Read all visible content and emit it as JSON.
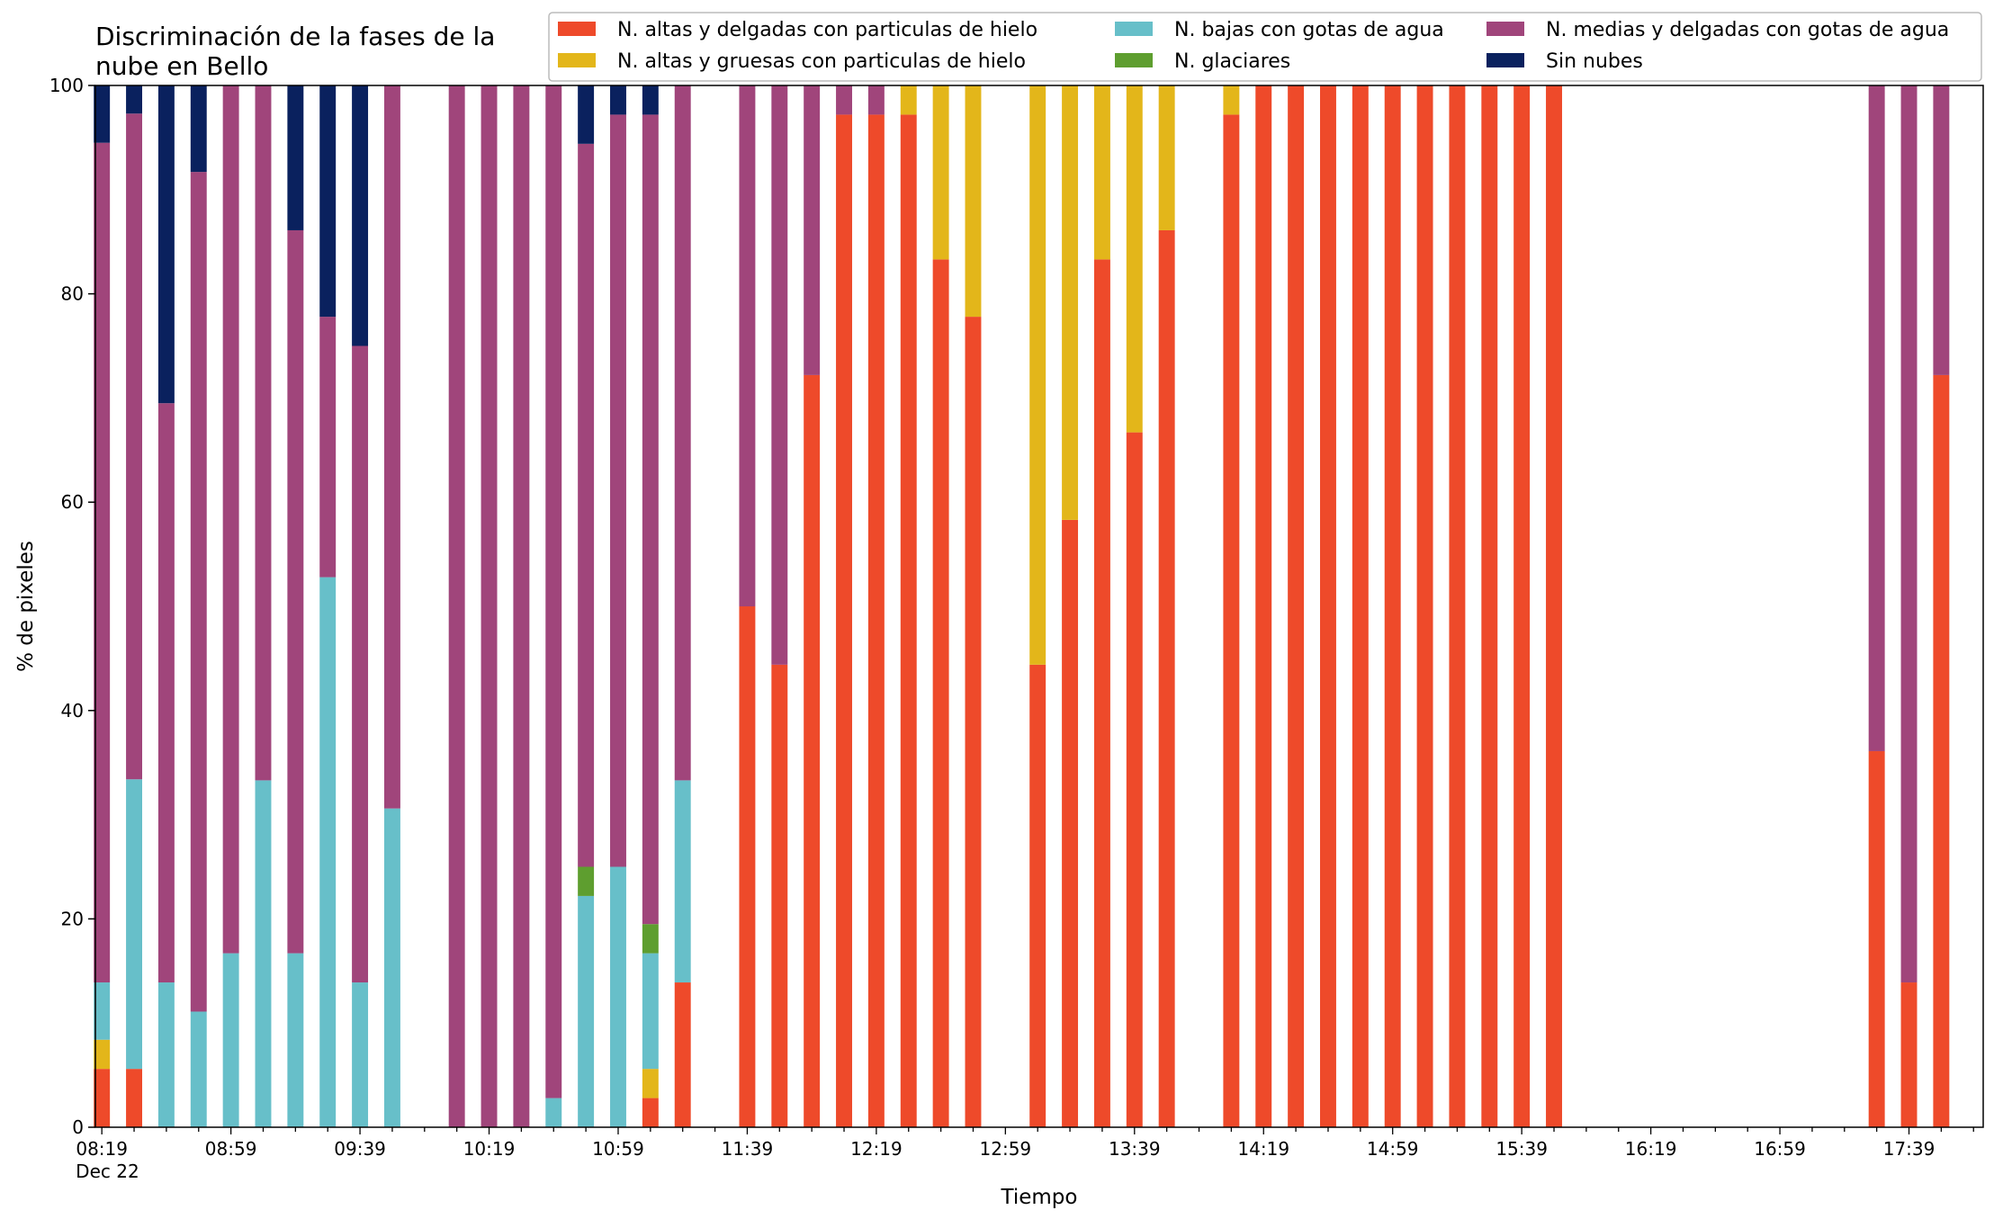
{
  "chart_data": {
    "type": "bar",
    "stacked": true,
    "title_lines": [
      "Discriminación de la fases de la",
      "nube en Bello"
    ],
    "xlabel": "Tiempo",
    "ylabel": "% de pixeles",
    "ylim": [
      0,
      100
    ],
    "yticks": [
      0,
      20,
      40,
      60,
      80,
      100
    ],
    "x_ticks": [
      {
        "label": "08:19",
        "sub": "Dec 22"
      },
      {
        "label": "08:59",
        "sub": ""
      },
      {
        "label": "09:39",
        "sub": ""
      },
      {
        "label": "10:19",
        "sub": ""
      },
      {
        "label": "10:59",
        "sub": ""
      },
      {
        "label": "11:39",
        "sub": ""
      },
      {
        "label": "12:19",
        "sub": ""
      },
      {
        "label": "12:59",
        "sub": ""
      },
      {
        "label": "13:39",
        "sub": ""
      },
      {
        "label": "14:19",
        "sub": ""
      },
      {
        "label": "14:59",
        "sub": ""
      },
      {
        "label": "15:39",
        "sub": ""
      },
      {
        "label": "16:19",
        "sub": ""
      },
      {
        "label": "16:59",
        "sub": ""
      },
      {
        "label": "17:39",
        "sub": ""
      }
    ],
    "x_step_minutes": 10,
    "x_start": "08:19",
    "x_end": "17:59",
    "legend_placement": "top-right",
    "legend": [
      {
        "key": "altas_delgadas",
        "label": "N. altas y delgadas con particulas de hielo"
      },
      {
        "key": "altas_gruesas",
        "label": "N. altas y gruesas con particulas de hielo"
      },
      {
        "key": "bajas",
        "label": "N. bajas con gotas de agua"
      },
      {
        "key": "glaciares",
        "label": "N. glaciares"
      },
      {
        "key": "medias",
        "label": "N. medias y delgadas con gotas de agua"
      },
      {
        "key": "sin_nubes",
        "label": "Sin nubes"
      }
    ],
    "stack_order": [
      "altas_delgadas",
      "altas_gruesas",
      "bajas",
      "glaciares",
      "medias",
      "sin_nubes"
    ],
    "colors": {
      "altas_delgadas": "#ee4a2a",
      "altas_gruesas": "#e3b61a",
      "bajas": "#67bfc9",
      "glaciares": "#5e9e2f",
      "medias": "#a0457b",
      "sin_nubes": "#0a215e"
    },
    "bars": [
      {
        "t": "08:19",
        "altas_delgadas": 5.6,
        "altas_gruesas": 2.8,
        "bajas": 5.5,
        "glaciares": 0,
        "medias": 80.6,
        "sin_nubes": 5.5
      },
      {
        "t": "08:29",
        "altas_delgadas": 5.6,
        "altas_gruesas": 0,
        "bajas": 27.8,
        "glaciares": 0,
        "medias": 63.9,
        "sin_nubes": 2.7
      },
      {
        "t": "08:39",
        "altas_delgadas": 0,
        "altas_gruesas": 0,
        "bajas": 13.9,
        "glaciares": 0,
        "medias": 55.6,
        "sin_nubes": 30.5
      },
      {
        "t": "08:49",
        "altas_delgadas": 0,
        "altas_gruesas": 0,
        "bajas": 11.1,
        "glaciares": 0,
        "medias": 80.6,
        "sin_nubes": 8.3
      },
      {
        "t": "08:59",
        "altas_delgadas": 0,
        "altas_gruesas": 0,
        "bajas": 16.7,
        "glaciares": 0,
        "medias": 83.3,
        "sin_nubes": 0
      },
      {
        "t": "09:09",
        "altas_delgadas": 0,
        "altas_gruesas": 0,
        "bajas": 33.3,
        "glaciares": 0,
        "medias": 66.7,
        "sin_nubes": 0
      },
      {
        "t": "09:19",
        "altas_delgadas": 0,
        "altas_gruesas": 0,
        "bajas": 16.7,
        "glaciares": 0,
        "medias": 69.4,
        "sin_nubes": 13.9
      },
      {
        "t": "09:29",
        "altas_delgadas": 0,
        "altas_gruesas": 0,
        "bajas": 52.8,
        "glaciares": 0,
        "medias": 25.0,
        "sin_nubes": 22.2
      },
      {
        "t": "09:39",
        "altas_delgadas": 0,
        "altas_gruesas": 0,
        "bajas": 13.9,
        "glaciares": 0,
        "medias": 61.1,
        "sin_nubes": 25.0
      },
      {
        "t": "09:49",
        "altas_delgadas": 0,
        "altas_gruesas": 0,
        "bajas": 30.6,
        "glaciares": 0,
        "medias": 69.4,
        "sin_nubes": 0
      },
      {
        "t": "10:09",
        "altas_delgadas": 0,
        "altas_gruesas": 0,
        "bajas": 0,
        "glaciares": 0,
        "medias": 100,
        "sin_nubes": 0
      },
      {
        "t": "10:19",
        "altas_delgadas": 0,
        "altas_gruesas": 0,
        "bajas": 0,
        "glaciares": 0,
        "medias": 100,
        "sin_nubes": 0
      },
      {
        "t": "10:29",
        "altas_delgadas": 0,
        "altas_gruesas": 0,
        "bajas": 0,
        "glaciares": 0,
        "medias": 100,
        "sin_nubes": 0
      },
      {
        "t": "10:39",
        "altas_delgadas": 0,
        "altas_gruesas": 0,
        "bajas": 2.8,
        "glaciares": 0,
        "medias": 97.2,
        "sin_nubes": 0
      },
      {
        "t": "10:49",
        "altas_delgadas": 0,
        "altas_gruesas": 0,
        "bajas": 22.2,
        "glaciares": 2.8,
        "medias": 69.4,
        "sin_nubes": 5.6
      },
      {
        "t": "10:59",
        "altas_delgadas": 0,
        "altas_gruesas": 0,
        "bajas": 25.0,
        "glaciares": 0,
        "medias": 72.2,
        "sin_nubes": 2.8
      },
      {
        "t": "11:09",
        "altas_delgadas": 2.8,
        "altas_gruesas": 2.8,
        "bajas": 11.1,
        "glaciares": 2.8,
        "medias": 77.7,
        "sin_nubes": 2.8
      },
      {
        "t": "11:19",
        "altas_delgadas": 13.9,
        "altas_gruesas": 0,
        "bajas": 19.4,
        "glaciares": 0,
        "medias": 66.7,
        "sin_nubes": 0
      },
      {
        "t": "11:39",
        "altas_delgadas": 50.0,
        "altas_gruesas": 0,
        "bajas": 0,
        "glaciares": 0,
        "medias": 50.0,
        "sin_nubes": 0
      },
      {
        "t": "11:49",
        "altas_delgadas": 44.4,
        "altas_gruesas": 0,
        "bajas": 0,
        "glaciares": 0,
        "medias": 55.6,
        "sin_nubes": 0
      },
      {
        "t": "11:59",
        "altas_delgadas": 72.2,
        "altas_gruesas": 0,
        "bajas": 0,
        "glaciares": 0,
        "medias": 27.8,
        "sin_nubes": 0
      },
      {
        "t": "12:09",
        "altas_delgadas": 97.2,
        "altas_gruesas": 0,
        "bajas": 0,
        "glaciares": 0,
        "medias": 2.8,
        "sin_nubes": 0
      },
      {
        "t": "12:19",
        "altas_delgadas": 97.2,
        "altas_gruesas": 0,
        "bajas": 0,
        "glaciares": 0,
        "medias": 2.8,
        "sin_nubes": 0
      },
      {
        "t": "12:29",
        "altas_delgadas": 97.2,
        "altas_gruesas": 2.8,
        "bajas": 0,
        "glaciares": 0,
        "medias": 0,
        "sin_nubes": 0
      },
      {
        "t": "12:39",
        "altas_delgadas": 83.3,
        "altas_gruesas": 16.7,
        "bajas": 0,
        "glaciares": 0,
        "medias": 0,
        "sin_nubes": 0
      },
      {
        "t": "12:49",
        "altas_delgadas": 77.8,
        "altas_gruesas": 22.2,
        "bajas": 0,
        "glaciares": 0,
        "medias": 0,
        "sin_nubes": 0
      },
      {
        "t": "13:09",
        "altas_delgadas": 44.4,
        "altas_gruesas": 55.6,
        "bajas": 0,
        "glaciares": 0,
        "medias": 0,
        "sin_nubes": 0
      },
      {
        "t": "13:19",
        "altas_delgadas": 58.3,
        "altas_gruesas": 41.7,
        "bajas": 0,
        "glaciares": 0,
        "medias": 0,
        "sin_nubes": 0
      },
      {
        "t": "13:29",
        "altas_delgadas": 83.3,
        "altas_gruesas": 16.7,
        "bajas": 0,
        "glaciares": 0,
        "medias": 0,
        "sin_nubes": 0
      },
      {
        "t": "13:39",
        "altas_delgadas": 66.7,
        "altas_gruesas": 33.3,
        "bajas": 0,
        "glaciares": 0,
        "medias": 0,
        "sin_nubes": 0
      },
      {
        "t": "13:49",
        "altas_delgadas": 86.1,
        "altas_gruesas": 13.9,
        "bajas": 0,
        "glaciares": 0,
        "medias": 0,
        "sin_nubes": 0
      },
      {
        "t": "14:09",
        "altas_delgadas": 97.2,
        "altas_gruesas": 2.8,
        "bajas": 0,
        "glaciares": 0,
        "medias": 0,
        "sin_nubes": 0
      },
      {
        "t": "14:19",
        "altas_delgadas": 100,
        "altas_gruesas": 0,
        "bajas": 0,
        "glaciares": 0,
        "medias": 0,
        "sin_nubes": 0
      },
      {
        "t": "14:29",
        "altas_delgadas": 100,
        "altas_gruesas": 0,
        "bajas": 0,
        "glaciares": 0,
        "medias": 0,
        "sin_nubes": 0
      },
      {
        "t": "14:39",
        "altas_delgadas": 100,
        "altas_gruesas": 0,
        "bajas": 0,
        "glaciares": 0,
        "medias": 0,
        "sin_nubes": 0
      },
      {
        "t": "14:49",
        "altas_delgadas": 100,
        "altas_gruesas": 0,
        "bajas": 0,
        "glaciares": 0,
        "medias": 0,
        "sin_nubes": 0
      },
      {
        "t": "14:59",
        "altas_delgadas": 100,
        "altas_gruesas": 0,
        "bajas": 0,
        "glaciares": 0,
        "medias": 0,
        "sin_nubes": 0
      },
      {
        "t": "15:09",
        "altas_delgadas": 100,
        "altas_gruesas": 0,
        "bajas": 0,
        "glaciares": 0,
        "medias": 0,
        "sin_nubes": 0
      },
      {
        "t": "15:19",
        "altas_delgadas": 100,
        "altas_gruesas": 0,
        "bajas": 0,
        "glaciares": 0,
        "medias": 0,
        "sin_nubes": 0
      },
      {
        "t": "15:29",
        "altas_delgadas": 100,
        "altas_gruesas": 0,
        "bajas": 0,
        "glaciares": 0,
        "medias": 0,
        "sin_nubes": 0
      },
      {
        "t": "15:39",
        "altas_delgadas": 100,
        "altas_gruesas": 0,
        "bajas": 0,
        "glaciares": 0,
        "medias": 0,
        "sin_nubes": 0
      },
      {
        "t": "15:49",
        "altas_delgadas": 100,
        "altas_gruesas": 0,
        "bajas": 0,
        "glaciares": 0,
        "medias": 0,
        "sin_nubes": 0
      },
      {
        "t": "17:29",
        "altas_delgadas": 36.1,
        "altas_gruesas": 0,
        "bajas": 0,
        "glaciares": 0,
        "medias": 63.9,
        "sin_nubes": 0
      },
      {
        "t": "17:39",
        "altas_delgadas": 13.9,
        "altas_gruesas": 0,
        "bajas": 0,
        "glaciares": 0,
        "medias": 86.1,
        "sin_nubes": 0
      },
      {
        "t": "17:49",
        "altas_delgadas": 72.2,
        "altas_gruesas": 0,
        "bajas": 0,
        "glaciares": 0,
        "medias": 27.8,
        "sin_nubes": 0
      }
    ]
  }
}
